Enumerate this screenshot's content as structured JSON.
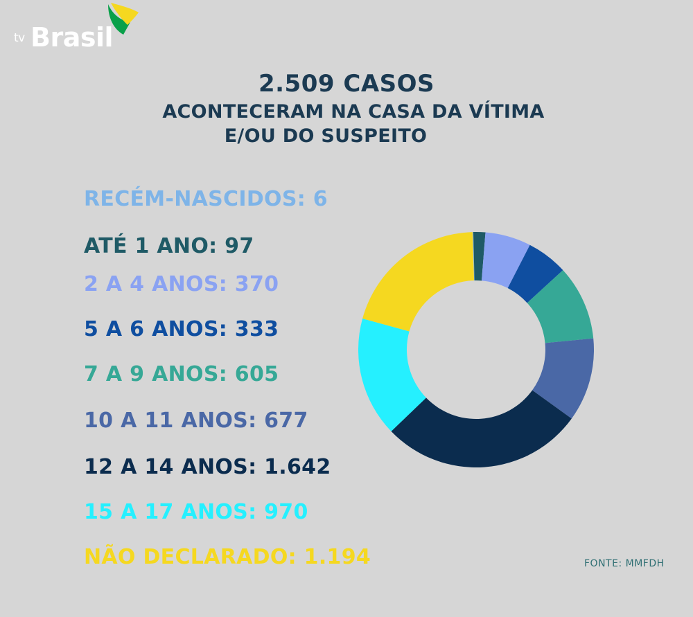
{
  "logo": {
    "tv": "tv",
    "brand": "Brasil"
  },
  "heading": {
    "main": "2.509 CASOS",
    "line1": "ACONTECERAM NA CASA DA VÍTIMA",
    "line2": "E/OU DO SUSPEITO"
  },
  "legend": [
    {
      "label": "RECÉM-NASCIDOS: 6",
      "color": "#7eb4e8"
    },
    {
      "label": "ATÉ 1 ANO: 97",
      "color": "#1f5a66"
    },
    {
      "label": "2 A 4 ANOS: 370",
      "color": "#8aa2f2"
    },
    {
      "label": "5 A 6 ANOS: 333",
      "color": "#0f4ea0"
    },
    {
      "label": "7 A 9 ANOS: 605",
      "color": "#36a896"
    },
    {
      "label": "10 A 11 ANOS: 677",
      "color": "#4a68a6"
    },
    {
      "label": "12 A 14 ANOS: 1.642",
      "color": "#0b2c4e"
    },
    {
      "label": "15 A 17 ANOS: 970",
      "color": "#25f0ff"
    },
    {
      "label": "NÃO DECLARADO: 1.194",
      "color": "#f5d820"
    }
  ],
  "source": "FONTE: MMFDH",
  "chart_data": {
    "type": "pie",
    "style": "donut",
    "categories": [
      "RECÉM-NASCIDOS",
      "ATÉ 1 ANO",
      "2 A 4 ANOS",
      "5 A 6 ANOS",
      "7 A 9 ANOS",
      "10 A 11 ANOS",
      "12 A 14 ANOS",
      "15 A 17 ANOS",
      "NÃO DECLARADO"
    ],
    "values": [
      6,
      97,
      370,
      333,
      605,
      677,
      1642,
      970,
      1194
    ],
    "colors": [
      "#7eb4e8",
      "#1f5a66",
      "#8aa2f2",
      "#0f4ea0",
      "#36a896",
      "#4a68a6",
      "#0b2c4e",
      "#25f0ff",
      "#f5d820"
    ],
    "title": "2.509 CASOS",
    "subtitle": "ACONTECERAM NA CASA DA VÍTIMA E/OU DO SUSPEITO",
    "legend_position": "left"
  }
}
